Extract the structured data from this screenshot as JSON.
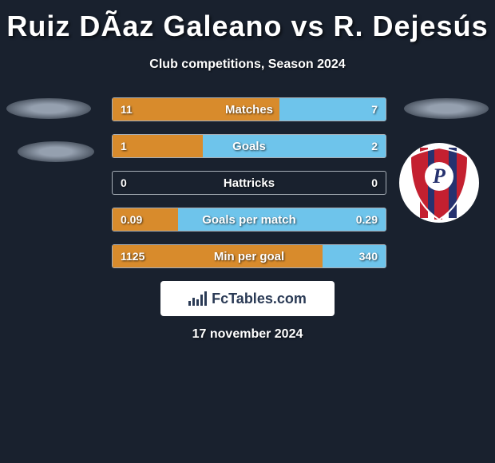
{
  "title": "Ruiz DÃ­az Galeano vs R. Dejesús",
  "subtitle": "Club competitions, Season 2024",
  "date": "17 november 2024",
  "branding": "FcTables.com",
  "colors": {
    "bar_left_fill": "#d88b2c",
    "bar_right_fill": "#6ec4eb",
    "bar_border": "#a7afb7",
    "background": "#19212e"
  },
  "crest": {
    "outer": "#ffffff",
    "red": "#c42030",
    "blue": "#26326f"
  },
  "bars": [
    {
      "label": "Matches",
      "left_val": "11",
      "right_val": "7",
      "left_pct": 61,
      "right_pct": 39
    },
    {
      "label": "Goals",
      "left_val": "1",
      "right_val": "2",
      "left_pct": 33,
      "right_pct": 67
    },
    {
      "label": "Hattricks",
      "left_val": "0",
      "right_val": "0",
      "left_pct": 0,
      "right_pct": 0
    },
    {
      "label": "Goals per match",
      "left_val": "0.09",
      "right_val": "0.29",
      "left_pct": 24,
      "right_pct": 76
    },
    {
      "label": "Min per goal",
      "left_val": "1125",
      "right_val": "340",
      "left_pct": 77,
      "right_pct": 23
    }
  ]
}
